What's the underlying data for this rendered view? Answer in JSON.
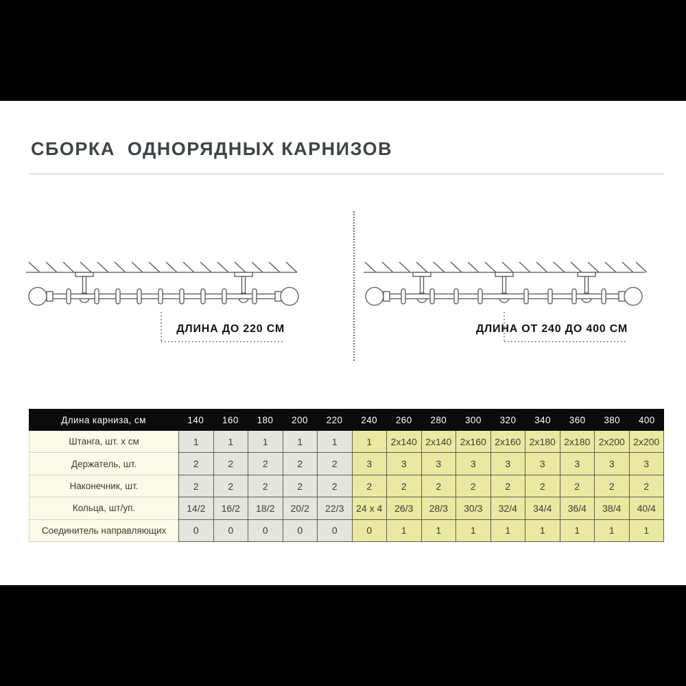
{
  "page": {
    "title": "СБОРКА  ОДНОРЯДНЫХ КАРНИЗОВ"
  },
  "diagrams": {
    "short": {
      "label": "ДЛИНА ДО 220 СМ",
      "brackets": 2
    },
    "long": {
      "label": "ДЛИНА ОТ 240 ДО 400 СМ",
      "brackets": 3
    }
  },
  "colors": {
    "band": "#000000",
    "header_bg": "#0b0b0b",
    "row_label_bg": "#fcfbe9",
    "short_group_bg": "#e4e6dd",
    "long_group_bg": "#eae9a2",
    "title_text": "#3e4347"
  },
  "table": {
    "header_label": "Длина карниза, см",
    "columns": [
      "140",
      "160",
      "180",
      "200",
      "220",
      "240",
      "260",
      "280",
      "300",
      "320",
      "340",
      "360",
      "380",
      "400"
    ],
    "rows": [
      {
        "label": "Штанга, шт. х см",
        "values": [
          "1",
          "1",
          "1",
          "1",
          "1",
          "1",
          "2х140",
          "2х140",
          "2х160",
          "2х160",
          "2х180",
          "2х180",
          "2х200",
          "2х200"
        ]
      },
      {
        "label": "Держатель, шт.",
        "values": [
          "2",
          "2",
          "2",
          "2",
          "2",
          "3",
          "3",
          "3",
          "3",
          "3",
          "3",
          "3",
          "3",
          "3"
        ]
      },
      {
        "label": "Наконечник, шт.",
        "values": [
          "2",
          "2",
          "2",
          "2",
          "2",
          "2",
          "2",
          "2",
          "2",
          "2",
          "2",
          "2",
          "2",
          "2"
        ]
      },
      {
        "label": "Кольца, шт/уп.",
        "values": [
          "14/2",
          "16/2",
          "18/2",
          "20/2",
          "22/3",
          "24 х 4",
          "26/3",
          "28/3",
          "30/3",
          "32/4",
          "34/4",
          "36/4",
          "38/4",
          "40/4"
        ]
      },
      {
        "label": "Соединитель направляющих",
        "values": [
          "0",
          "0",
          "0",
          "0",
          "0",
          "0",
          "1",
          "1",
          "1",
          "1",
          "1",
          "1",
          "1",
          "1"
        ]
      }
    ]
  }
}
